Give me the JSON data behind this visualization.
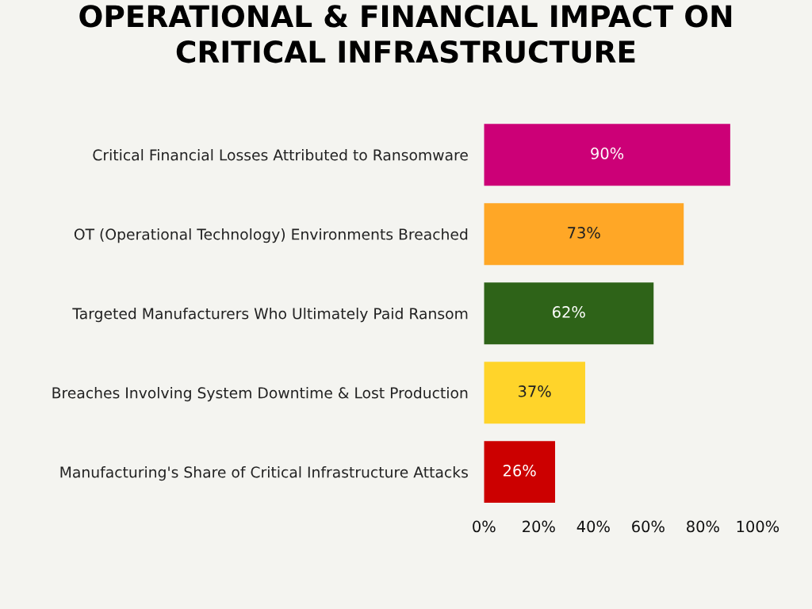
{
  "chart_data": {
    "type": "bar",
    "orientation": "horizontal",
    "title": "OPERATIONAL & FINANCIAL IMPACT ON\nCRITICAL INFRASTRUCTURE",
    "categories": [
      "Critical Financial Losses Attributed to Ransomware",
      "OT (Operational Technology) Environments Breached",
      "Targeted Manufacturers Who Ultimately Paid Ransom",
      "Breaches Involving System Downtime & Lost Production",
      "Manufacturing's Share of Critical Infrastructure Attacks"
    ],
    "values": [
      90,
      73,
      62,
      37,
      26
    ],
    "colors": [
      "#cc0077",
      "#ffa726",
      "#2e6318",
      "#ffd42a",
      "#cc0000"
    ],
    "value_labels": [
      "90%",
      "73%",
      "62%",
      "37%",
      "26%"
    ],
    "xlim": [
      0,
      100
    ],
    "xticks": [
      {
        "value": 0,
        "label": "0%"
      },
      {
        "value": 20,
        "label": "20%"
      },
      {
        "value": 40,
        "label": "40%"
      },
      {
        "value": 60,
        "label": "60%"
      },
      {
        "value": 80,
        "label": "80%"
      },
      {
        "value": 100,
        "label": "100%"
      }
    ],
    "grid": false,
    "legend": false
  }
}
